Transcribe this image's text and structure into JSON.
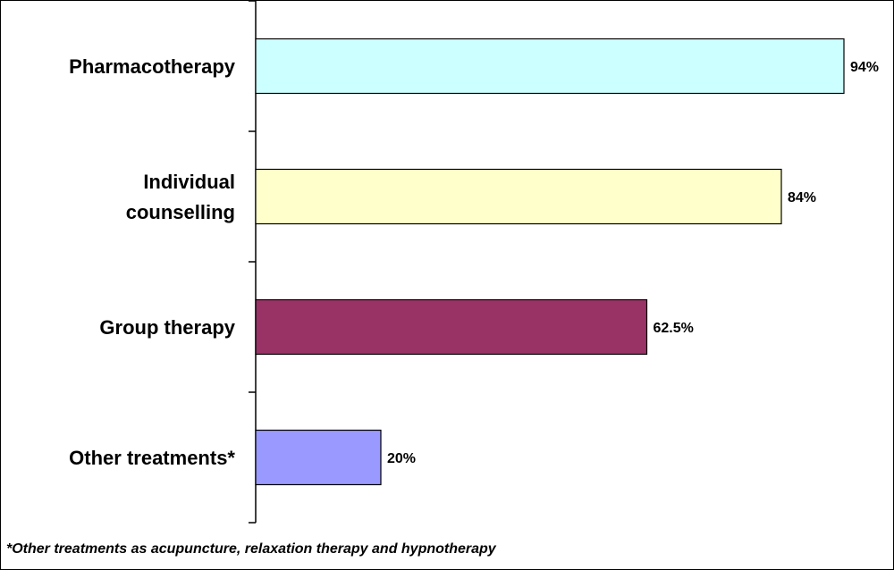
{
  "chart_data": {
    "type": "bar",
    "orientation": "horizontal",
    "categories": [
      [
        "Pharmacotherapy"
      ],
      [
        "Individual",
        "counselling"
      ],
      [
        "Group therapy"
      ],
      [
        "Other treatments*"
      ]
    ],
    "values": [
      94,
      84,
      62.5,
      20
    ],
    "value_labels": [
      "94%",
      "84%",
      "62.5%",
      "20%"
    ],
    "colors": [
      "#ccffff",
      "#ffffcc",
      "#993366",
      "#9999ff"
    ],
    "xlim": [
      0,
      100
    ],
    "grid": false,
    "legend": "none"
  },
  "footnote": "*Other treatments as acupuncture, relaxation therapy and hypnotherapy"
}
